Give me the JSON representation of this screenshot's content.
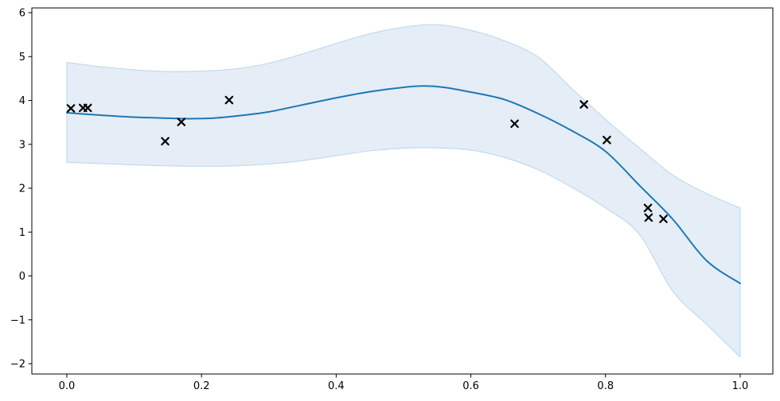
{
  "figure": {
    "background": "#ffffff",
    "title": ""
  },
  "chart_data": {
    "type": "line",
    "title": "",
    "xlabel": "",
    "ylabel": "",
    "grid": false,
    "legend": "none",
    "xlim": [
      -0.052,
      1.0485
    ],
    "ylim": [
      -2.235,
      6.109
    ],
    "x_ticks": [
      {
        "value": 0.0,
        "label": "0.0"
      },
      {
        "value": 0.2,
        "label": "0.2"
      },
      {
        "value": 0.4,
        "label": "0.4"
      },
      {
        "value": 0.6,
        "label": "0.6"
      },
      {
        "value": 0.8,
        "label": "0.8"
      },
      {
        "value": 1.0,
        "label": "1.0"
      }
    ],
    "y_ticks": [
      {
        "value": 6,
        "label": "6"
      },
      {
        "value": 5,
        "label": "5"
      },
      {
        "value": 4,
        "label": "4"
      },
      {
        "value": 3,
        "label": "3"
      },
      {
        "value": 2,
        "label": "2"
      },
      {
        "value": 1,
        "label": "1"
      },
      {
        "value": 0,
        "label": "0"
      },
      {
        "value": -1,
        "label": "−1"
      },
      {
        "value": -2,
        "label": "−2"
      }
    ],
    "series": [
      {
        "name": "confidence-band",
        "type": "band",
        "fill_color": "#e5edf6",
        "edge_color": "#bad6eb",
        "upper": [
          [
            0.0,
            4.87
          ],
          [
            0.05,
            4.77
          ],
          [
            0.1,
            4.7
          ],
          [
            0.15,
            4.66
          ],
          [
            0.2,
            4.67
          ],
          [
            0.25,
            4.72
          ],
          [
            0.3,
            4.85
          ],
          [
            0.35,
            5.06
          ],
          [
            0.4,
            5.3
          ],
          [
            0.45,
            5.52
          ],
          [
            0.5,
            5.67
          ],
          [
            0.55,
            5.73
          ],
          [
            0.6,
            5.6
          ],
          [
            0.65,
            5.36
          ],
          [
            0.7,
            4.99
          ],
          [
            0.75,
            4.27
          ],
          [
            0.8,
            3.57
          ],
          [
            0.85,
            2.92
          ],
          [
            0.9,
            2.3
          ],
          [
            0.95,
            1.88
          ],
          [
            1.0,
            1.55
          ]
        ],
        "lower": [
          [
            0.0,
            2.59
          ],
          [
            0.05,
            2.56
          ],
          [
            0.1,
            2.53
          ],
          [
            0.15,
            2.51
          ],
          [
            0.2,
            2.5
          ],
          [
            0.25,
            2.51
          ],
          [
            0.3,
            2.55
          ],
          [
            0.35,
            2.63
          ],
          [
            0.4,
            2.74
          ],
          [
            0.45,
            2.85
          ],
          [
            0.5,
            2.91
          ],
          [
            0.55,
            2.92
          ],
          [
            0.6,
            2.87
          ],
          [
            0.65,
            2.7
          ],
          [
            0.7,
            2.42
          ],
          [
            0.75,
            2.02
          ],
          [
            0.8,
            1.55
          ],
          [
            0.85,
            0.95
          ],
          [
            0.9,
            -0.35
          ],
          [
            0.95,
            -1.1
          ],
          [
            1.0,
            -1.85
          ]
        ]
      },
      {
        "name": "mean-line",
        "type": "line",
        "color": "#1f77b4",
        "points": [
          [
            0.0,
            3.72
          ],
          [
            0.05,
            3.665
          ],
          [
            0.1,
            3.62
          ],
          [
            0.14,
            3.6
          ],
          [
            0.18,
            3.585
          ],
          [
            0.22,
            3.6
          ],
          [
            0.26,
            3.66
          ],
          [
            0.3,
            3.74
          ],
          [
            0.35,
            3.9
          ],
          [
            0.4,
            4.06
          ],
          [
            0.45,
            4.2
          ],
          [
            0.5,
            4.3
          ],
          [
            0.53,
            4.33
          ],
          [
            0.56,
            4.3
          ],
          [
            0.6,
            4.19
          ],
          [
            0.65,
            4.02
          ],
          [
            0.7,
            3.7
          ],
          [
            0.75,
            3.31
          ],
          [
            0.8,
            2.84
          ],
          [
            0.85,
            2.07
          ],
          [
            0.9,
            1.29
          ],
          [
            0.95,
            0.35
          ],
          [
            1.0,
            -0.17
          ]
        ]
      },
      {
        "name": "observations",
        "type": "scatter",
        "marker": "x",
        "color": "#000000",
        "points": [
          [
            0.006,
            3.82
          ],
          [
            0.024,
            3.83
          ],
          [
            0.031,
            3.83
          ],
          [
            0.146,
            3.07
          ],
          [
            0.17,
            3.51
          ],
          [
            0.241,
            4.01
          ],
          [
            0.665,
            3.47
          ],
          [
            0.768,
            3.91
          ],
          [
            0.802,
            3.1
          ],
          [
            0.863,
            1.55
          ],
          [
            0.864,
            1.33
          ],
          [
            0.886,
            1.3
          ]
        ]
      }
    ],
    "axis_color": "#000000"
  }
}
